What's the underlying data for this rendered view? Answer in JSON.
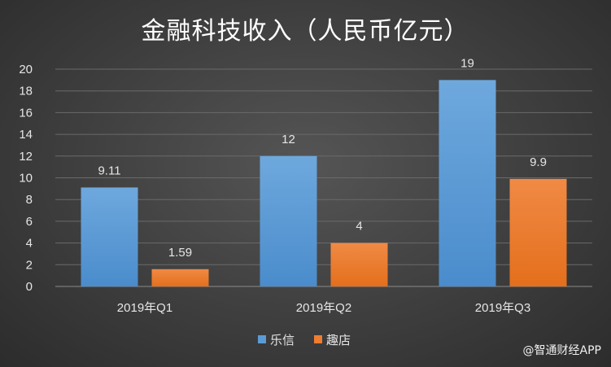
{
  "chart_data": {
    "type": "bar",
    "title": "金融科技收入（人民币亿元）",
    "categories": [
      "2019年Q1",
      "2019年Q2",
      "2019年Q3"
    ],
    "series": [
      {
        "name": "乐信",
        "values": [
          9.11,
          12,
          19
        ],
        "labels": [
          "9.11",
          "12",
          "19"
        ],
        "color": "#5b9bd5"
      },
      {
        "name": "趣店",
        "values": [
          1.59,
          4,
          9.9
        ],
        "labels": [
          "1.59",
          "4",
          "9.9"
        ],
        "color": "#ed7d31"
      }
    ],
    "xlabel": "",
    "ylabel": "",
    "ylim": [
      0,
      20
    ],
    "yticks": [
      "0",
      "2",
      "4",
      "6",
      "8",
      "10",
      "12",
      "14",
      "16",
      "18",
      "20"
    ],
    "grid": true,
    "legend_position": "bottom"
  },
  "watermark": "@智通财经APP"
}
